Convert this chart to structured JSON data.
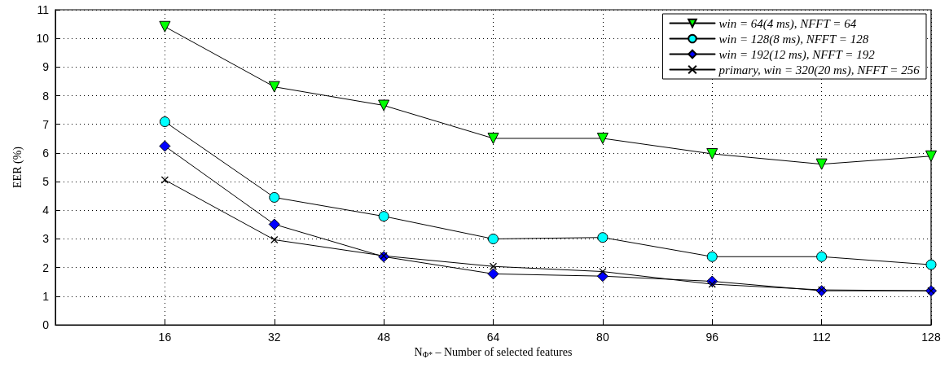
{
  "chart_data": {
    "type": "line",
    "xlabel": "N$_{Φ*}$ – Number of selected features",
    "ylabel": "EER (%)",
    "x": [
      16,
      32,
      48,
      64,
      80,
      96,
      112,
      128
    ],
    "xlim": [
      0,
      128
    ],
    "xticks": [
      16,
      32,
      48,
      64,
      80,
      96,
      112,
      128
    ],
    "ylim": [
      0,
      11
    ],
    "yticks": [
      0,
      1,
      2,
      3,
      4,
      5,
      6,
      7,
      8,
      9,
      10,
      11
    ],
    "grid": true,
    "legend": "top right",
    "line_style": "solid",
    "series": [
      {
        "name": "win = 64(4 ms), NFFT = 64",
        "color": "#00ff00",
        "marker": "triangle",
        "values": [
          10.41,
          8.31,
          7.66,
          6.51,
          6.51,
          5.97,
          5.61,
          5.89
        ]
      },
      {
        "name": "win = 128(8 ms), NFFT = 128",
        "color": "#00ffff",
        "marker": "circle",
        "values": [
          7.09,
          4.45,
          3.79,
          3.0,
          3.05,
          2.38,
          2.38,
          2.1
        ]
      },
      {
        "name": "win = 192(12 ms), NFFT = 192",
        "color": "#0000ff",
        "marker": "diamond",
        "values": [
          6.24,
          3.51,
          2.38,
          1.78,
          1.7,
          1.52,
          1.19,
          1.19
        ]
      },
      {
        "name": "primary, win = 320(20 ms), NFFT = 256",
        "color": "#000000",
        "marker": "cross",
        "values": [
          5.06,
          2.97,
          2.41,
          2.04,
          1.86,
          1.42,
          1.22,
          1.19
        ]
      }
    ]
  }
}
